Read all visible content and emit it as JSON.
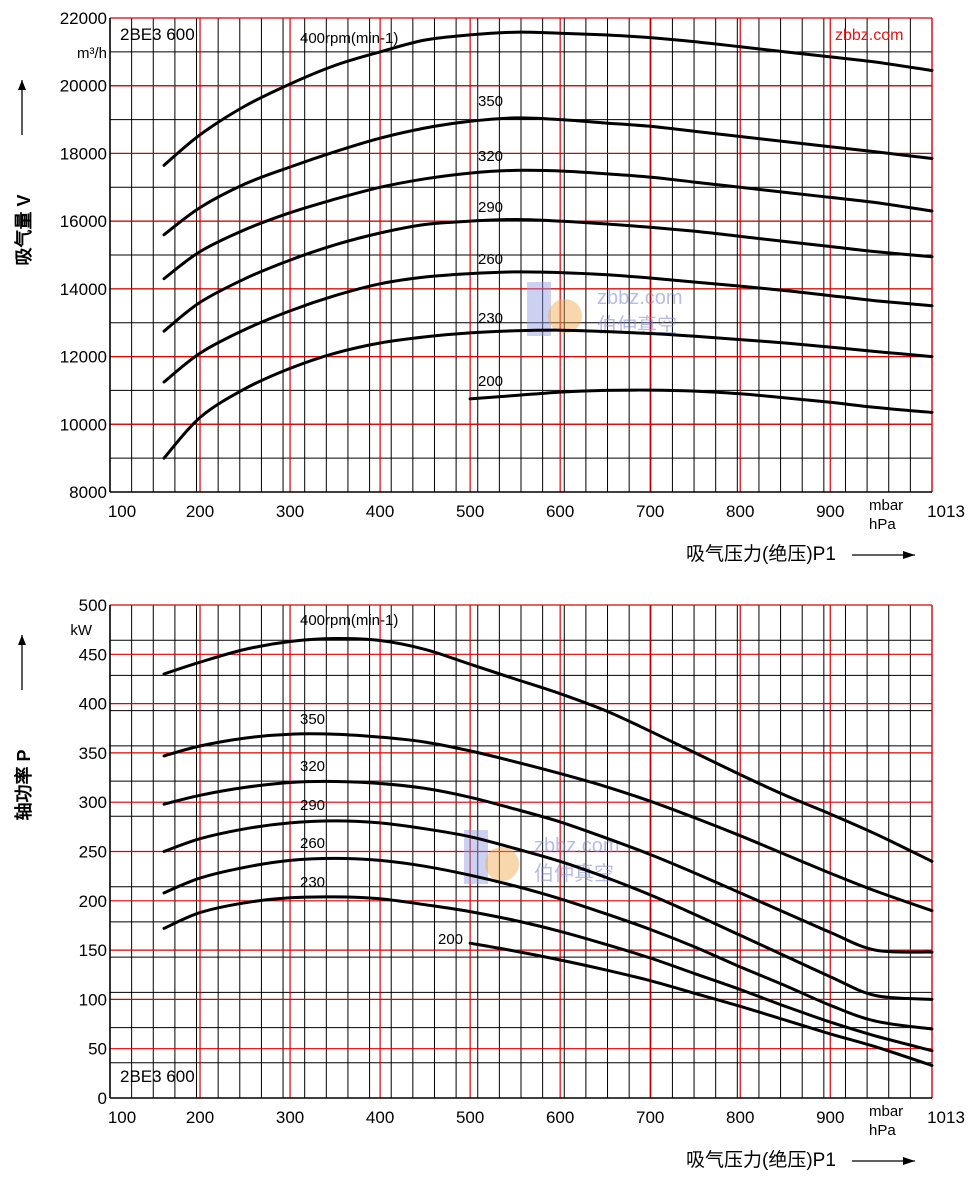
{
  "site_mark": "zbbz.com",
  "watermark": {
    "url": "zbbz.com",
    "name": "伯仲真空"
  },
  "chart_data": [
    {
      "type": "line",
      "model": "2BE3 600",
      "ylabel": "吸气量 V",
      "yunit": "m³/h",
      "xlabel": "吸气压力(绝压)P1",
      "xunit_lines": [
        "mbar",
        "hPa"
      ],
      "xlim": [
        100,
        1013
      ],
      "ylim": [
        8000,
        22000
      ],
      "xticks": [
        100,
        200,
        300,
        400,
        500,
        600,
        700,
        800,
        900,
        1013
      ],
      "yticks": [
        8000,
        10000,
        12000,
        14000,
        16000,
        18000,
        20000,
        22000
      ],
      "grid": true,
      "series": [
        {
          "name": "400rpm(min-1)",
          "points": [
            [
              160,
              17650
            ],
            [
              200,
              18550
            ],
            [
              250,
              19400
            ],
            [
              300,
              20050
            ],
            [
              350,
              20600
            ],
            [
              400,
              21000
            ],
            [
              450,
              21350
            ],
            [
              500,
              21500
            ],
            [
              550,
              21580
            ],
            [
              600,
              21550
            ],
            [
              650,
              21500
            ],
            [
              700,
              21420
            ],
            [
              750,
              21300
            ],
            [
              800,
              21150
            ],
            [
              850,
              21000
            ],
            [
              900,
              20850
            ],
            [
              950,
              20700
            ],
            [
              1013,
              20450
            ]
          ]
        },
        {
          "name": "350",
          "points": [
            [
              160,
              15600
            ],
            [
              200,
              16400
            ],
            [
              250,
              17100
            ],
            [
              300,
              17600
            ],
            [
              350,
              18050
            ],
            [
              400,
              18450
            ],
            [
              450,
              18750
            ],
            [
              500,
              18950
            ],
            [
              550,
              19050
            ],
            [
              600,
              19000
            ],
            [
              650,
              18900
            ],
            [
              700,
              18800
            ],
            [
              750,
              18650
            ],
            [
              800,
              18500
            ],
            [
              850,
              18350
            ],
            [
              900,
              18200
            ],
            [
              950,
              18050
            ],
            [
              1013,
              17850
            ]
          ]
        },
        {
          "name": "320",
          "points": [
            [
              160,
              14300
            ],
            [
              200,
              15100
            ],
            [
              250,
              15750
            ],
            [
              300,
              16250
            ],
            [
              350,
              16650
            ],
            [
              400,
              17000
            ],
            [
              450,
              17250
            ],
            [
              500,
              17420
            ],
            [
              550,
              17500
            ],
            [
              600,
              17480
            ],
            [
              650,
              17400
            ],
            [
              700,
              17300
            ],
            [
              750,
              17150
            ],
            [
              800,
              17000
            ],
            [
              850,
              16850
            ],
            [
              900,
              16700
            ],
            [
              950,
              16550
            ],
            [
              1013,
              16300
            ]
          ]
        },
        {
          "name": "290",
          "points": [
            [
              160,
              12750
            ],
            [
              200,
              13600
            ],
            [
              250,
              14300
            ],
            [
              300,
              14850
            ],
            [
              350,
              15300
            ],
            [
              400,
              15650
            ],
            [
              450,
              15900
            ],
            [
              500,
              16000
            ],
            [
              550,
              16050
            ],
            [
              600,
              16000
            ],
            [
              650,
              15920
            ],
            [
              700,
              15820
            ],
            [
              750,
              15700
            ],
            [
              800,
              15550
            ],
            [
              850,
              15400
            ],
            [
              900,
              15250
            ],
            [
              950,
              15100
            ],
            [
              1013,
              14950
            ]
          ]
        },
        {
          "name": "260",
          "points": [
            [
              160,
              11250
            ],
            [
              200,
              12100
            ],
            [
              250,
              12800
            ],
            [
              300,
              13350
            ],
            [
              350,
              13800
            ],
            [
              400,
              14150
            ],
            [
              450,
              14350
            ],
            [
              500,
              14450
            ],
            [
              550,
              14500
            ],
            [
              600,
              14480
            ],
            [
              650,
              14420
            ],
            [
              700,
              14320
            ],
            [
              750,
              14200
            ],
            [
              800,
              14080
            ],
            [
              850,
              13950
            ],
            [
              900,
              13800
            ],
            [
              950,
              13650
            ],
            [
              1013,
              13500
            ]
          ]
        },
        {
          "name": "230",
          "points": [
            [
              160,
              9000
            ],
            [
              200,
              10200
            ],
            [
              250,
              11050
            ],
            [
              300,
              11650
            ],
            [
              350,
              12100
            ],
            [
              400,
              12400
            ],
            [
              450,
              12580
            ],
            [
              500,
              12700
            ],
            [
              550,
              12760
            ],
            [
              600,
              12780
            ],
            [
              650,
              12740
            ],
            [
              700,
              12680
            ],
            [
              750,
              12600
            ],
            [
              800,
              12500
            ],
            [
              850,
              12400
            ],
            [
              900,
              12280
            ],
            [
              950,
              12150
            ],
            [
              1013,
              12000
            ]
          ]
        },
        {
          "name": "200",
          "points": [
            [
              500,
              10750
            ],
            [
              550,
              10850
            ],
            [
              600,
              10950
            ],
            [
              650,
              11000
            ],
            [
              700,
              11010
            ],
            [
              750,
              10980
            ],
            [
              800,
              10900
            ],
            [
              850,
              10780
            ],
            [
              900,
              10650
            ],
            [
              950,
              10500
            ],
            [
              1013,
              10350
            ]
          ]
        }
      ]
    },
    {
      "type": "line",
      "model": "2BE3 600",
      "ylabel": "轴功率 P",
      "yunit": "kW",
      "xlabel": "吸气压力(绝压)P1",
      "xunit_lines": [
        "mbar",
        "hPa"
      ],
      "xlim": [
        100,
        1013
      ],
      "ylim": [
        0,
        500
      ],
      "xticks": [
        100,
        200,
        300,
        400,
        500,
        600,
        700,
        800,
        900,
        1013
      ],
      "yticks": [
        0,
        50,
        100,
        150,
        200,
        250,
        300,
        350,
        400,
        450,
        500
      ],
      "grid": true,
      "series": [
        {
          "name": "400rpm(min-1)",
          "points": [
            [
              160,
              430
            ],
            [
              200,
              442
            ],
            [
              250,
              455
            ],
            [
              300,
              463
            ],
            [
              350,
              466
            ],
            [
              400,
              464
            ],
            [
              450,
              455
            ],
            [
              500,
              440
            ],
            [
              550,
              425
            ],
            [
              600,
              410
            ],
            [
              650,
              393
            ],
            [
              700,
              372
            ],
            [
              750,
              350
            ],
            [
              800,
              328
            ],
            [
              850,
              307
            ],
            [
              900,
              288
            ],
            [
              950,
              268
            ],
            [
              1013,
              240
            ]
          ]
        },
        {
          "name": "350",
          "points": [
            [
              160,
              347
            ],
            [
              200,
              357
            ],
            [
              250,
              365
            ],
            [
              300,
              369
            ],
            [
              350,
              369
            ],
            [
              400,
              366
            ],
            [
              450,
              361
            ],
            [
              500,
              352
            ],
            [
              550,
              341
            ],
            [
              600,
              329
            ],
            [
              650,
              316
            ],
            [
              700,
              301
            ],
            [
              750,
              284
            ],
            [
              800,
              266
            ],
            [
              850,
              247
            ],
            [
              900,
              228
            ],
            [
              950,
              210
            ],
            [
              1013,
              190
            ]
          ]
        },
        {
          "name": "320",
          "points": [
            [
              160,
              298
            ],
            [
              200,
              307
            ],
            [
              250,
              315
            ],
            [
              300,
              320
            ],
            [
              350,
              321
            ],
            [
              400,
              319
            ],
            [
              450,
              314
            ],
            [
              500,
              305
            ],
            [
              550,
              293
            ],
            [
              600,
              280
            ],
            [
              650,
              264
            ],
            [
              700,
              247
            ],
            [
              750,
              228
            ],
            [
              800,
              208
            ],
            [
              850,
              188
            ],
            [
              900,
              168
            ],
            [
              950,
              150
            ],
            [
              1013,
              148
            ]
          ]
        },
        {
          "name": "290",
          "points": [
            [
              160,
              250
            ],
            [
              200,
              263
            ],
            [
              250,
              273
            ],
            [
              300,
              279
            ],
            [
              350,
              281
            ],
            [
              400,
              279
            ],
            [
              450,
              273
            ],
            [
              500,
              265
            ],
            [
              550,
              253
            ],
            [
              600,
              240
            ],
            [
              650,
              224
            ],
            [
              700,
              206
            ],
            [
              750,
              186
            ],
            [
              800,
              165
            ],
            [
              850,
              144
            ],
            [
              900,
              123
            ],
            [
              950,
              104
            ],
            [
              1013,
              100
            ]
          ]
        },
        {
          "name": "260",
          "points": [
            [
              160,
              208
            ],
            [
              200,
              223
            ],
            [
              250,
              234
            ],
            [
              300,
              241
            ],
            [
              350,
              243
            ],
            [
              400,
              241
            ],
            [
              450,
              235
            ],
            [
              500,
              226
            ],
            [
              550,
              215
            ],
            [
              600,
              202
            ],
            [
              650,
              187
            ],
            [
              700,
              171
            ],
            [
              750,
              153
            ],
            [
              800,
              133
            ],
            [
              850,
              114
            ],
            [
              900,
              94
            ],
            [
              950,
              78
            ],
            [
              1013,
              70
            ]
          ]
        },
        {
          "name": "230",
          "points": [
            [
              160,
              172
            ],
            [
              200,
              188
            ],
            [
              250,
              198
            ],
            [
              300,
              203
            ],
            [
              350,
              204
            ],
            [
              400,
              202
            ],
            [
              450,
              196
            ],
            [
              500,
              189
            ],
            [
              550,
              180
            ],
            [
              600,
              169
            ],
            [
              650,
              156
            ],
            [
              700,
              142
            ],
            [
              750,
              126
            ],
            [
              800,
              110
            ],
            [
              850,
              93
            ],
            [
              900,
              77
            ],
            [
              950,
              63
            ],
            [
              1013,
              48
            ]
          ]
        },
        {
          "name": "200",
          "points": [
            [
              500,
              157
            ],
            [
              550,
              149
            ],
            [
              600,
              140
            ],
            [
              650,
              130
            ],
            [
              700,
              119
            ],
            [
              750,
              106
            ],
            [
              800,
              93
            ],
            [
              850,
              79
            ],
            [
              900,
              65
            ],
            [
              950,
              52
            ],
            [
              1013,
              33
            ]
          ]
        }
      ]
    }
  ]
}
